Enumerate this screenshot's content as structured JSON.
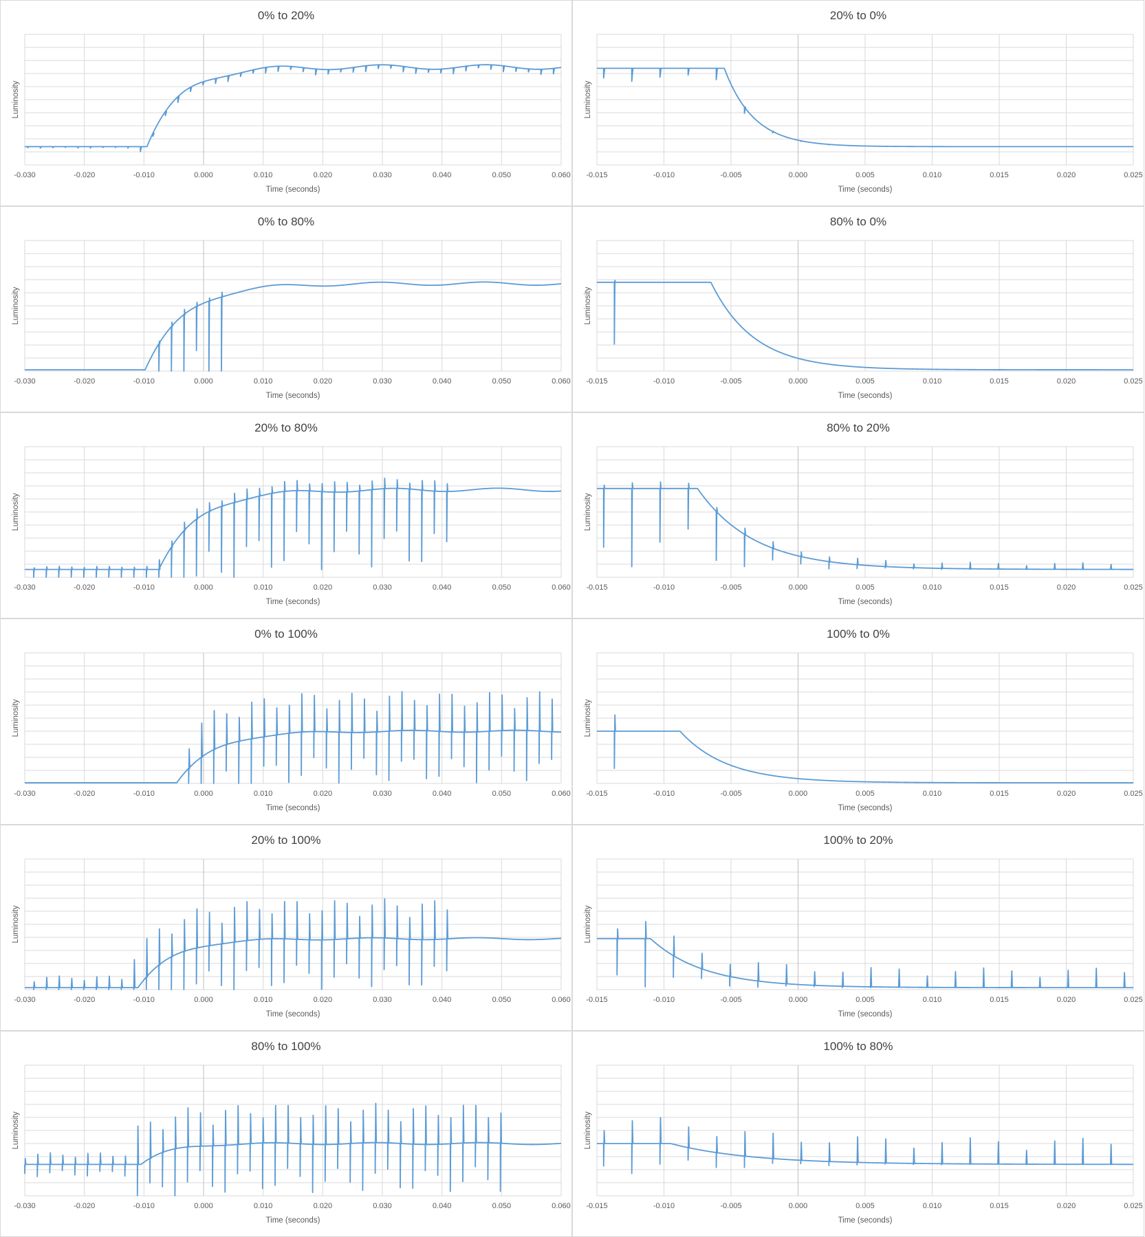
{
  "chart_data": [
    {
      "type": "line",
      "title": "0% to 20%",
      "xlabel": "Time (seconds)",
      "ylabel": "Luminosity",
      "xlim": [
        -0.03,
        0.06
      ],
      "ylim": [
        0,
        10
      ],
      "xticks": [
        "-0.030",
        "-0.020",
        "-0.010",
        "0.000",
        "0.010",
        "0.020",
        "0.030",
        "0.040",
        "0.050",
        "0.060"
      ],
      "grid": true,
      "baseline": 1.4,
      "level": 7.5,
      "rise_start": -0.0095,
      "tau": 0.0055,
      "dips_start": -0.0295,
      "dip_period": 0.0021,
      "dip_depth": 0.45,
      "dip_up": 0,
      "jitter": 0.35
    },
    {
      "type": "line",
      "title": "20% to 0%",
      "xlabel": "Time (seconds)",
      "ylabel": "Luminosity",
      "xlim": [
        -0.015,
        0.025
      ],
      "ylim": [
        0,
        10
      ],
      "xticks": [
        "-0.015",
        "-0.010",
        "-0.005",
        "0.000",
        "0.005",
        "0.010",
        "0.015",
        "0.020",
        "0.025"
      ],
      "grid": true,
      "baseline": 7.4,
      "level": 1.4,
      "rise_start": -0.0055,
      "tau": 0.0022,
      "dips_start": -0.0145,
      "dip_period": 0.0021,
      "dip_depth": 1.0,
      "dip_up": 0,
      "jitter": 0
    },
    {
      "type": "line",
      "title": "0% to 80%",
      "xlabel": "Time (seconds)",
      "ylabel": "Luminosity",
      "xlim": [
        -0.03,
        0.06
      ],
      "ylim": [
        0,
        10
      ],
      "xticks": [
        "-0.030",
        "-0.020",
        "-0.010",
        "0.000",
        "0.010",
        "0.020",
        "0.030",
        "0.040",
        "0.050",
        "0.060"
      ],
      "grid": true,
      "baseline": 0.1,
      "level": 6.7,
      "rise_start": -0.0098,
      "tau": 0.0065,
      "dips_start": -0.0075,
      "dip_period": 0.0021,
      "dip_depth": 6.5,
      "dip_up": 0.4,
      "jitter": 0.25
    },
    {
      "type": "line",
      "title": "80% to 0%",
      "xlabel": "Time (seconds)",
      "ylabel": "Luminosity",
      "xlim": [
        -0.015,
        0.025
      ],
      "ylim": [
        0,
        10
      ],
      "xticks": [
        "-0.015",
        "-0.010",
        "-0.005",
        "0.000",
        "0.005",
        "0.010",
        "0.015",
        "0.020",
        "0.025"
      ],
      "grid": true,
      "baseline": 6.8,
      "level": 0.1,
      "rise_start": -0.0065,
      "tau": 0.0032,
      "dips_start": -0.0137,
      "dip_period": 0.0021,
      "dip_depth": 6.3,
      "dip_up": 0.3,
      "jitter": 0
    },
    {
      "type": "line",
      "title": "20% to 80%",
      "xlabel": "Time (seconds)",
      "ylabel": "Luminosity",
      "xlim": [
        -0.03,
        0.06
      ],
      "ylim": [
        0,
        10
      ],
      "xticks": [
        "-0.030",
        "-0.020",
        "-0.010",
        "0.000",
        "0.010",
        "0.020",
        "0.030",
        "0.040",
        "0.050",
        "0.060"
      ],
      "grid": true,
      "baseline": 0.6,
      "level": 6.7,
      "rise_start": -0.0075,
      "tau": 0.0065,
      "dips_start": -0.0285,
      "dip_period": 0.0021,
      "dip_depth": 6.0,
      "dip_up": 0.8,
      "jitter": 0.25
    },
    {
      "type": "line",
      "title": "80% to 20%",
      "xlabel": "Time (seconds)",
      "ylabel": "Luminosity",
      "xlim": [
        -0.015,
        0.025
      ],
      "ylim": [
        0,
        10
      ],
      "xticks": [
        "-0.015",
        "-0.010",
        "-0.005",
        "0.000",
        "0.005",
        "0.010",
        "0.015",
        "0.020",
        "0.025"
      ],
      "grid": true,
      "baseline": 6.8,
      "level": 0.6,
      "rise_start": -0.0075,
      "tau": 0.0042,
      "dips_start": -0.0145,
      "dip_period": 0.0021,
      "dip_depth": 6.0,
      "dip_up": 0.5,
      "jitter": 0
    },
    {
      "type": "line",
      "title": "0% to 100%",
      "xlabel": "Time (seconds)",
      "ylabel": "Luminosity",
      "xlim": [
        -0.03,
        0.06
      ],
      "ylim": [
        0,
        10
      ],
      "xticks": [
        "-0.030",
        "-0.020",
        "-0.010",
        "0.000",
        "0.010",
        "0.020",
        "0.030",
        "0.040",
        "0.050",
        "0.060"
      ],
      "grid": true,
      "baseline": 0.05,
      "level": 4.0,
      "rise_start": -0.0045,
      "tau": 0.0062,
      "dips_start": -0.0025,
      "dip_period": 0.0021,
      "dip_depth": 3.9,
      "dip_up": 3.0,
      "jitter": 0.15
    },
    {
      "type": "line",
      "title": "100% to 0%",
      "xlabel": "Time (seconds)",
      "ylabel": "Luminosity",
      "xlim": [
        -0.015,
        0.025
      ],
      "ylim": [
        0,
        10
      ],
      "xticks": [
        "-0.015",
        "-0.010",
        "-0.005",
        "0.000",
        "0.005",
        "0.010",
        "0.015",
        "0.020",
        "0.025"
      ],
      "grid": true,
      "baseline": 4.0,
      "level": 0.05,
      "rise_start": -0.0088,
      "tau": 0.0035,
      "dips_start": -0.0137,
      "dip_period": 0.0021,
      "dip_depth": 3.8,
      "dip_up": 2.5,
      "jitter": 0
    },
    {
      "type": "line",
      "title": "20% to 100%",
      "xlabel": "Time (seconds)",
      "ylabel": "Luminosity",
      "xlim": [
        -0.03,
        0.06
      ],
      "ylim": [
        0,
        10
      ],
      "xticks": [
        "-0.030",
        "-0.020",
        "-0.010",
        "0.000",
        "0.010",
        "0.020",
        "0.030",
        "0.040",
        "0.050",
        "0.060"
      ],
      "grid": true,
      "baseline": 0.15,
      "level": 3.9,
      "rise_start": -0.011,
      "tau": 0.0058,
      "dips_start": -0.0285,
      "dip_period": 0.0021,
      "dip_depth": 3.8,
      "dip_up": 3.0,
      "jitter": 0.15
    },
    {
      "type": "line",
      "title": "100% to 20%",
      "xlabel": "Time (seconds)",
      "ylabel": "Luminosity",
      "xlim": [
        -0.015,
        0.025
      ],
      "ylim": [
        0,
        10
      ],
      "xticks": [
        "-0.015",
        "-0.010",
        "-0.005",
        "0.000",
        "0.005",
        "0.010",
        "0.015",
        "0.020",
        "0.025"
      ],
      "grid": true,
      "baseline": 3.9,
      "level": 0.15,
      "rise_start": -0.011,
      "tau": 0.004,
      "dips_start": -0.0135,
      "dip_period": 0.0021,
      "dip_depth": 3.7,
      "dip_up": 1.5,
      "jitter": 0
    },
    {
      "type": "line",
      "title": "80% to 100%",
      "xlabel": "Time (seconds)",
      "ylabel": "Luminosity",
      "xlim": [
        -0.03,
        0.06
      ],
      "ylim": [
        0,
        10
      ],
      "xticks": [
        "-0.030",
        "-0.020",
        "-0.010",
        "0.000",
        "0.010",
        "0.020",
        "0.030",
        "0.040",
        "0.050",
        "0.060"
      ],
      "grid": true,
      "baseline": 2.4,
      "level": 4.0,
      "rise_start": -0.0105,
      "tau": 0.0045,
      "dips_start": -0.03,
      "dip_period": 0.0021,
      "dip_depth": 3.7,
      "dip_up": 3.0,
      "jitter": 0.15
    },
    {
      "type": "line",
      "title": "100% to 80%",
      "xlabel": "Time (seconds)",
      "ylabel": "Luminosity",
      "xlim": [
        -0.015,
        0.025
      ],
      "ylim": [
        0,
        10
      ],
      "xticks": [
        "-0.015",
        "-0.010",
        "-0.005",
        "0.000",
        "0.005",
        "0.010",
        "0.015",
        "0.020",
        "0.025"
      ],
      "grid": true,
      "baseline": 4.0,
      "level": 2.4,
      "rise_start": -0.0095,
      "tau": 0.006,
      "dips_start": -0.0145,
      "dip_period": 0.0021,
      "dip_depth": 2.3,
      "dip_up": 2.0,
      "jitter": 0
    }
  ],
  "colors": {
    "line": "#5b9bd5",
    "grid": "#d9d9d9",
    "border": "#d9d9d9",
    "text": "#595959",
    "title": "#404040"
  }
}
